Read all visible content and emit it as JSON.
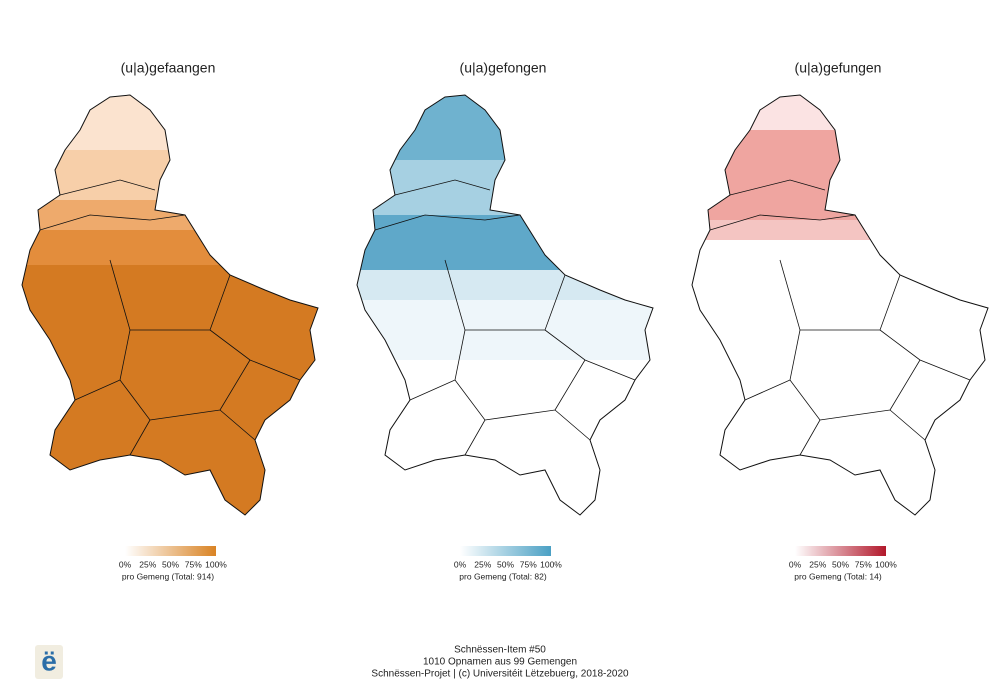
{
  "panels": [
    {
      "title": "(u|a)gefaangen",
      "legend": {
        "colors": [
          "#ffffff",
          "#d98324"
        ],
        "lim": [
          0,
          100
        ],
        "ticks": [
          {
            "value": 0,
            "label": "0%"
          },
          {
            "value": 25,
            "label": "25%"
          },
          {
            "value": 50,
            "label": "50%"
          },
          {
            "value": 75,
            "label": "75%"
          },
          {
            "value": 100,
            "label": "100%"
          }
        ],
        "caption": "pro Gemeng (Total: 914)"
      }
    },
    {
      "title": "(u|a)gefongen",
      "legend": {
        "colors": [
          "#ffffff",
          "#4aa0c4"
        ],
        "lim": [
          0,
          100
        ],
        "ticks": [
          {
            "value": 0,
            "label": "0%"
          },
          {
            "value": 25,
            "label": "25%"
          },
          {
            "value": 50,
            "label": "50%"
          },
          {
            "value": 75,
            "label": "75%"
          },
          {
            "value": 100,
            "label": "100%"
          }
        ],
        "caption": "pro Gemeng (Total: 82)"
      }
    },
    {
      "title": "(u|a)gefungen",
      "legend": {
        "colors": [
          "#ffffff",
          "#b2182b"
        ],
        "lim": [
          0,
          100
        ],
        "ticks": [
          {
            "value": 0,
            "label": "0%"
          },
          {
            "value": 25,
            "label": "25%"
          },
          {
            "value": 50,
            "label": "50%"
          },
          {
            "value": 75,
            "label": "75%"
          },
          {
            "value": 100,
            "label": "100%"
          }
        ],
        "caption": "pro Gemeng (Total: 14)"
      }
    }
  ],
  "footer": {
    "lines": [
      "Schnëssen-Item #50",
      "1010 Opnamen aus 99 Gemengen",
      "Schnëssen-Projet | (c) Universitéit Lëtzebuerg, 2018-2020"
    ]
  },
  "logo": "ë"
}
